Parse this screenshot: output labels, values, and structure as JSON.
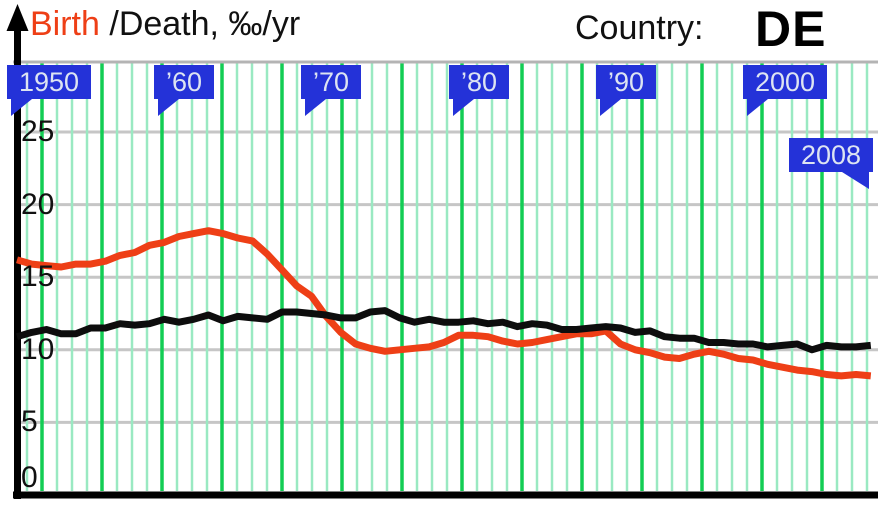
{
  "header": {
    "title_birth": "Birth",
    "title_rest": " /Death, ‰/yr",
    "country_label": "Country:",
    "country_code": "DE"
  },
  "y_axis": {
    "tick_labels": [
      "25",
      "20",
      "15",
      "10",
      "5",
      "0"
    ]
  },
  "flags": [
    {
      "label": "1950",
      "year": 1950,
      "pointer": "left"
    },
    {
      "label": "’60",
      "year": 1960,
      "pointer": "left"
    },
    {
      "label": "’70",
      "year": 1970,
      "pointer": "left"
    },
    {
      "label": "’80",
      "year": 1980,
      "pointer": "left"
    },
    {
      "label": "’90",
      "year": 1990,
      "pointer": "left"
    },
    {
      "label": "2000",
      "year": 2000,
      "pointer": "left"
    },
    {
      "label": "2008",
      "year": 2008,
      "pointer": "right"
    }
  ],
  "colors": {
    "birth_line": "#ee3f16",
    "death_line": "#0d0d0d",
    "flag_bg": "#2432d8",
    "flag_text": "#dde4f2",
    "grid_minor_green": "#9ae9c2",
    "grid_major_green": "#12cd54",
    "grid_gray": "#c6c6c6",
    "plot_top_border": "#b4b4b4",
    "axis_black": "#000000"
  },
  "chart_data": {
    "type": "line",
    "title": "Birth /Death, ‰/yr",
    "annotation": "Country: DE",
    "ylabel": "‰/yr",
    "ylim": [
      0,
      29.8
    ],
    "yticks": [
      0,
      5,
      10,
      15,
      20,
      25
    ],
    "x_flag_labels": [
      "1950",
      "’60",
      "’70",
      "’80",
      "’90",
      "2000",
      "2008"
    ],
    "grid": {
      "vertical": "light green minor lines ~yearly, bright green major lines every ~4 years",
      "horizontal": "gray lines every 5 ‰"
    },
    "legend_position": "inline-in-title (Birth shown in red)",
    "x": [
      1950,
      1951,
      1952,
      1953,
      1954,
      1955,
      1956,
      1957,
      1958,
      1959,
      1960,
      1961,
      1962,
      1963,
      1964,
      1965,
      1966,
      1967,
      1968,
      1969,
      1970,
      1971,
      1972,
      1973,
      1974,
      1975,
      1976,
      1977,
      1978,
      1979,
      1980,
      1981,
      1982,
      1983,
      1984,
      1985,
      1986,
      1987,
      1988,
      1989,
      1990,
      1991,
      1992,
      1993,
      1994,
      1995,
      1996,
      1997,
      1998,
      1999,
      2000,
      2001,
      2002,
      2003,
      2004,
      2005,
      2006,
      2007,
      2008
    ],
    "series": [
      {
        "name": "Birth",
        "color": "#ee3f16",
        "values": [
          16.2,
          15.9,
          15.8,
          15.7,
          15.9,
          15.9,
          16.1,
          16.5,
          16.7,
          17.2,
          17.4,
          17.8,
          18.0,
          18.2,
          18.0,
          17.7,
          17.5,
          16.6,
          15.5,
          14.4,
          13.7,
          12.3,
          11.2,
          10.4,
          10.1,
          9.9,
          10.0,
          10.1,
          10.2,
          10.5,
          11.0,
          11.0,
          10.9,
          10.6,
          10.4,
          10.5,
          10.7,
          10.9,
          11.1,
          11.1,
          11.3,
          10.4,
          10.0,
          9.8,
          9.5,
          9.4,
          9.7,
          9.9,
          9.7,
          9.4,
          9.3,
          9.0,
          8.8,
          8.6,
          8.5,
          8.3,
          8.2,
          8.3,
          8.2
        ]
      },
      {
        "name": "Death",
        "color": "#0d0d0d",
        "values": [
          10.9,
          11.2,
          11.4,
          11.1,
          11.1,
          11.5,
          11.5,
          11.8,
          11.7,
          11.8,
          12.1,
          11.9,
          12.1,
          12.4,
          12.0,
          12.3,
          12.2,
          12.1,
          12.6,
          12.6,
          12.5,
          12.4,
          12.2,
          12.2,
          12.6,
          12.7,
          12.2,
          11.9,
          12.1,
          11.9,
          11.9,
          12.0,
          11.8,
          11.9,
          11.6,
          11.8,
          11.7,
          11.4,
          11.4,
          11.5,
          11.6,
          11.5,
          11.2,
          11.3,
          10.9,
          10.8,
          10.8,
          10.5,
          10.5,
          10.4,
          10.4,
          10.2,
          10.3,
          10.4,
          10.0,
          10.3,
          10.2,
          10.2,
          10.3
        ]
      }
    ]
  }
}
